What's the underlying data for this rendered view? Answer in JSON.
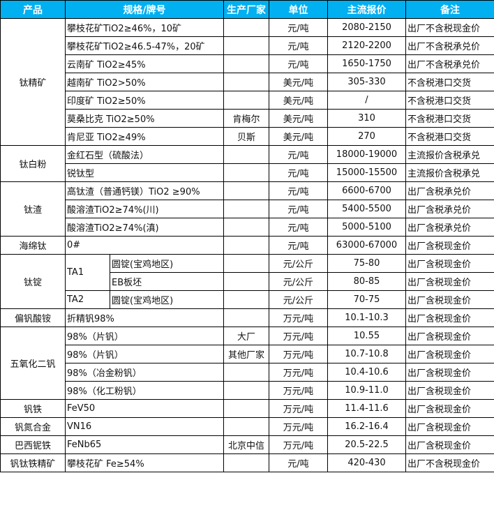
{
  "header": {
    "product": "产品",
    "spec": "规格/牌号",
    "maker": "生产厂家",
    "unit": "单位",
    "price": "主流报价",
    "note": "备注"
  },
  "colors": {
    "header_bg": "#00b0f0"
  },
  "groups": [
    {
      "product": "钛精矿",
      "rows": [
        {
          "spec": "攀枝花矿TiO2≥46%，10矿",
          "maker": "",
          "unit": "元/吨",
          "price": "2080-2150",
          "note": "出厂不含税现金价"
        },
        {
          "spec": "攀枝花矿TiO2≥46.5-47%，20矿",
          "maker": "",
          "unit": "元/吨",
          "price": "2120-2200",
          "note": "出厂不含税承兑价"
        },
        {
          "spec": "云南矿 TiO2≥45%",
          "maker": "",
          "unit": "元/吨",
          "price": "1650-1750",
          "note": "出厂不含税承兑价"
        },
        {
          "spec": "越南矿 TiO2>50%",
          "maker": "",
          "unit": "美元/吨",
          "price": "305-330",
          "note": "不含税港口交货"
        },
        {
          "spec": "印度矿 TiO2≥50%",
          "maker": "",
          "unit": "美元/吨",
          "price": "/",
          "note": "不含税港口交货"
        },
        {
          "spec": "莫桑比克 TiO2≥50%",
          "maker": "肯梅尔",
          "unit": "美元/吨",
          "price": "310",
          "note": "不含税港口交货"
        },
        {
          "spec": "肯尼亚 TiO2≥49%",
          "maker": "贝斯",
          "unit": "美元/吨",
          "price": "270",
          "note": "不含税港口交货"
        }
      ]
    },
    {
      "product": "钛白粉",
      "rows": [
        {
          "spec": "金红石型（硫酸法）",
          "maker": "",
          "unit": "元/吨",
          "price": "18000-19000",
          "note": "主流报价含税承兑"
        },
        {
          "spec": "锐钛型",
          "maker": "",
          "unit": "元/吨",
          "price": "15000-15500",
          "note": "主流报价含税承兑"
        }
      ]
    },
    {
      "product": "钛渣",
      "rows": [
        {
          "spec": "高钛渣（普通钙镁）TiO2 ≥90%",
          "maker": "",
          "unit": "元/吨",
          "price": "6600-6700",
          "note": "出厂含税承兑价"
        },
        {
          "spec": "酸溶渣TiO2≥74%(川)",
          "maker": "",
          "unit": "元/吨",
          "price": "5400-5500",
          "note": "出厂含税承兑价"
        },
        {
          "spec": "酸溶渣TiO2≥74%(滇)",
          "maker": "",
          "unit": "元/吨",
          "price": "5000-5100",
          "note": "出厂含税承兑价"
        }
      ]
    },
    {
      "product": "海绵钛",
      "rows": [
        {
          "spec": "0#",
          "maker": "",
          "unit": "元/吨",
          "price": "63000-67000",
          "note": "出厂含税现金价"
        }
      ]
    },
    {
      "product": "钛锭",
      "rows": [
        {
          "grade": "TA1",
          "spec": "圆锭(宝鸡地区)",
          "maker": "",
          "unit": "元/公斤",
          "price": "75-80",
          "note": "出厂含税现金价"
        },
        {
          "grade": "",
          "spec": "EB板坯",
          "maker": "",
          "unit": "元/公斤",
          "price": "80-85",
          "note": "出厂含税现金价"
        },
        {
          "grade": "TA2",
          "spec": "圆锭(宝鸡地区)",
          "maker": "",
          "unit": "元/公斤",
          "price": "70-75",
          "note": "出厂含税现金价"
        }
      ]
    },
    {
      "product": "偏钒酸铵",
      "rows": [
        {
          "spec": "折精钒98%",
          "maker": "",
          "unit": "万元/吨",
          "price": "10.1-10.3",
          "note": "出厂含税现金价"
        }
      ]
    },
    {
      "product": "五氧化二钒",
      "rows": [
        {
          "spec": "98%（片钒）",
          "maker": "大厂",
          "unit": "万元/吨",
          "price": "10.55",
          "note": "出厂含税现金价"
        },
        {
          "spec": "98%（片钒）",
          "maker": "其他厂家",
          "unit": "万元/吨",
          "price": "10.7-10.8",
          "note": "出厂含税现金价"
        },
        {
          "spec": "98%（冶金粉钒）",
          "maker": "",
          "unit": "万元/吨",
          "price": "10.4-10.6",
          "note": "出厂含税现金价"
        },
        {
          "spec": "98%（化工粉钒）",
          "maker": "",
          "unit": "万元/吨",
          "price": "10.9-11.0",
          "note": "出厂含税现金价"
        }
      ]
    },
    {
      "product": "钒铁",
      "rows": [
        {
          "spec": "FeV50",
          "maker": "",
          "unit": "万元/吨",
          "price": "11.4-11.6",
          "note": "出厂含税现金价"
        }
      ]
    },
    {
      "product": "钒氮合金",
      "rows": [
        {
          "spec": "VN16",
          "maker": "",
          "unit": "万元/吨",
          "price": "16.2-16.4",
          "note": "出厂含税现金价"
        }
      ]
    },
    {
      "product": "巴西铌铁",
      "rows": [
        {
          "spec": "FeNb65",
          "maker": "北京中信",
          "unit": "万元/吨",
          "price": "20.5-22.5",
          "note": "出厂含税现金价"
        }
      ]
    },
    {
      "product": "钒钛铁精矿",
      "rows": [
        {
          "spec": "攀枝花矿 Fe≥54%",
          "maker": "",
          "unit": "元/吨",
          "price": "420-430",
          "note": "出厂不含税现金价"
        }
      ]
    }
  ]
}
